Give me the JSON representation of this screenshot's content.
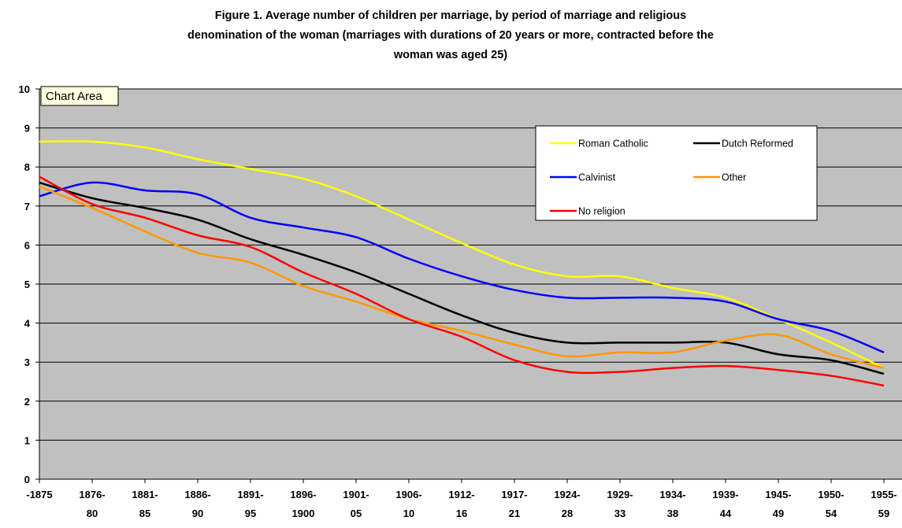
{
  "chart_data": {
    "type": "line",
    "title": [
      "Figure 1. Average number of children per marriage, by period of marriage and religious",
      "denomination of the woman (marriages with durations of 20 years or more, contracted before the",
      "woman was aged 25)"
    ],
    "tooltip": "Chart Area",
    "categories": [
      "-1875",
      "1876-\n80",
      "1881-\n85",
      "1886-\n90",
      "1891-\n95",
      "1896-\n1900",
      "1901-\n05",
      "1906-\n10",
      "1912-\n16",
      "1917-\n21",
      "1924-\n28",
      "1929-\n33",
      "1934-\n38",
      "1939-\n44",
      "1945-\n49",
      "1950-\n54",
      "1955-\n59"
    ],
    "series": [
      {
        "name": "Roman Catholic",
        "color": "#ffff00",
        "values": [
          8.65,
          8.65,
          8.5,
          8.2,
          7.95,
          7.7,
          7.25,
          6.65,
          6.05,
          5.5,
          5.2,
          5.2,
          4.9,
          4.65,
          4.1,
          3.5,
          2.85
        ]
      },
      {
        "name": "Dutch Reformed",
        "color": "#000000",
        "values": [
          7.6,
          7.2,
          6.95,
          6.65,
          6.15,
          5.75,
          5.3,
          4.75,
          4.2,
          3.75,
          3.5,
          3.5,
          3.5,
          3.5,
          3.2,
          3.05,
          2.7
        ]
      },
      {
        "name": "Calvinist",
        "color": "#0000ff",
        "values": [
          7.25,
          7.6,
          7.4,
          7.3,
          6.7,
          6.45,
          6.2,
          5.65,
          5.2,
          4.85,
          4.65,
          4.65,
          4.65,
          4.55,
          4.1,
          3.8,
          3.25
        ]
      },
      {
        "name": "Other",
        "color": "#ff9900",
        "values": [
          7.5,
          6.95,
          6.35,
          5.8,
          5.55,
          4.95,
          4.55,
          4.1,
          3.8,
          3.45,
          3.15,
          3.25,
          3.25,
          3.55,
          3.7,
          3.2,
          2.85
        ]
      },
      {
        "name": "No religion",
        "color": "#ff0000",
        "values": [
          7.75,
          7.05,
          6.7,
          6.25,
          5.95,
          5.3,
          4.75,
          4.1,
          3.65,
          3.05,
          2.75,
          2.75,
          2.85,
          2.9,
          2.8,
          2.65,
          2.4
        ]
      }
    ],
    "ylim": [
      0,
      10
    ],
    "yticks": [
      0,
      1,
      2,
      3,
      4,
      5,
      6,
      7,
      8,
      9,
      10
    ],
    "grid": true,
    "plot_background": "#c0c0c0",
    "legend": "upper right"
  }
}
